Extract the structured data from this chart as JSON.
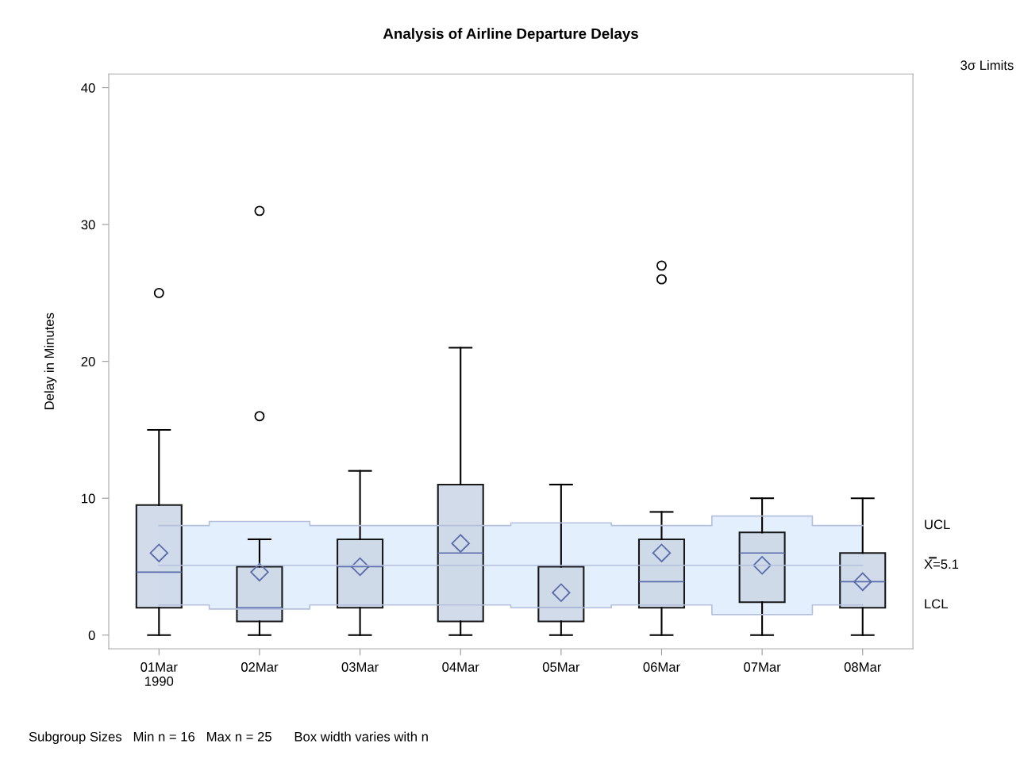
{
  "chart_data": {
    "type": "box",
    "title": "Analysis of Airline Departure Delays",
    "ylabel": "Delay in Minutes",
    "categories": [
      "01Mar\n1990",
      "02Mar",
      "03Mar",
      "04Mar",
      "05Mar",
      "06Mar",
      "07Mar",
      "08Mar"
    ],
    "ylim": [
      -1,
      41
    ],
    "yticks": [
      0,
      10,
      20,
      30,
      40
    ],
    "grid": false,
    "legend": false,
    "series": [
      {
        "color": "#cdd8e8",
        "marker": "diamond",
        "boxes": [
          {
            "low": 0,
            "q1": 2,
            "median": 4.6,
            "q3": 9.5,
            "high": 15,
            "mean": 6.0,
            "outliers": [
              25
            ]
          },
          {
            "low": 0,
            "q1": 1,
            "median": 2,
            "q3": 5,
            "high": 7,
            "mean": 4.6,
            "outliers": [
              16,
              31
            ]
          },
          {
            "low": 0,
            "q1": 2,
            "median": 5,
            "q3": 7,
            "high": 12,
            "mean": 5.0
          },
          {
            "low": 0,
            "q1": 1,
            "median": 6,
            "q3": 11,
            "high": 21,
            "mean": 6.7
          },
          {
            "low": 0,
            "q1": 1,
            "median": 2,
            "q3": 5,
            "high": 11,
            "mean": 3.1
          },
          {
            "low": 0,
            "q1": 2,
            "median": 3.9,
            "q3": 7,
            "high": 9,
            "mean": 6.0,
            "outliers": [
              26,
              27
            ]
          },
          {
            "low": 0,
            "q1": 2.4,
            "median": 6.0,
            "q3": 7.5,
            "high": 10,
            "mean": 5.1
          },
          {
            "low": 0,
            "q1": 2,
            "median": 3.9,
            "q3": 6,
            "high": 10,
            "mean": 3.9
          }
        ]
      },
      {
        "type": "step",
        "name": "X̿=5.1",
        "color": "#b4c0dc",
        "values": [
          5.1,
          5.1,
          5.1,
          5.1,
          5.1,
          5.1,
          5.1,
          5.1
        ],
        "lower": [
          2.2,
          1.9,
          2.2,
          2.2,
          2.0,
          2.2,
          1.5,
          2.2
        ],
        "upper": [
          8.0,
          8.3,
          8.0,
          8.0,
          8.2,
          8.0,
          8.7,
          8.0
        ]
      },
      {
        "type": "step",
        "name": "UCL",
        "color": "#b4c0dc",
        "values": [
          8.0,
          8.3,
          8.0,
          8.0,
          8.2,
          8.0,
          8.7,
          8.0
        ]
      },
      {
        "type": "step",
        "name": "LCL",
        "color": "#b4c0dc",
        "values": [
          2.2,
          1.9,
          2.2,
          2.2,
          2.0,
          2.2,
          1.5,
          2.2
        ]
      }
    ],
    "annotations": [
      "3σ Limits",
      "Subgroup Sizes   Min n = 16   Max n = 25      Box width varies with n"
    ]
  }
}
